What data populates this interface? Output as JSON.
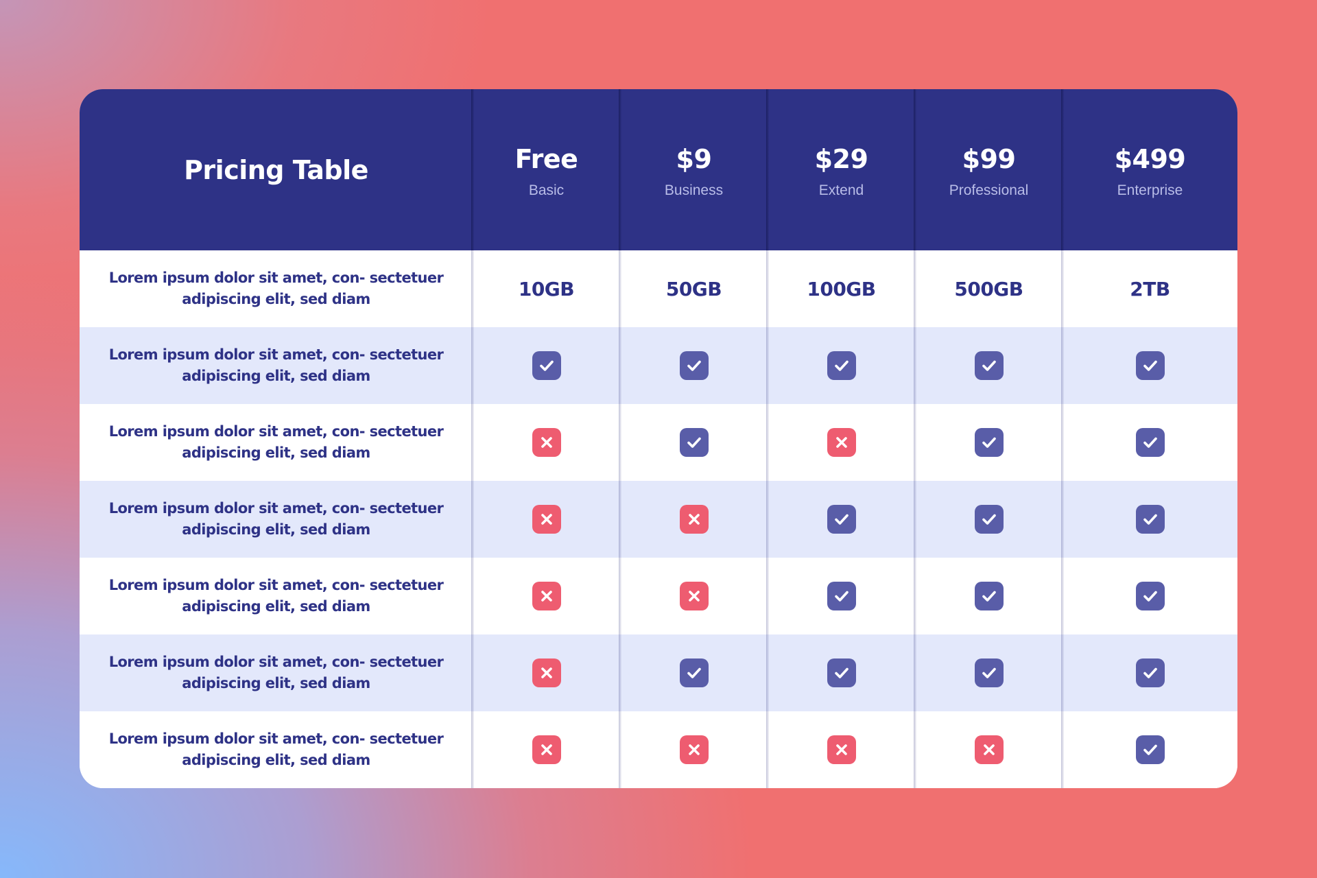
{
  "table": {
    "title": "Pricing Table",
    "plans": [
      {
        "price": "Free",
        "name": "Basic"
      },
      {
        "price": "$9",
        "name": "Business"
      },
      {
        "price": "$29",
        "name": "Extend"
      },
      {
        "price": "$99",
        "name": "Professional"
      },
      {
        "price": "$499",
        "name": "Enterprise"
      }
    ],
    "storage_row": {
      "feature": "Lorem ipsum dolor sit amet, con- sectetuer adipiscing elit, sed diam",
      "values": [
        "10GB",
        "50GB",
        "100GB",
        "500GB",
        "2TB"
      ]
    },
    "feature_rows": [
      {
        "feature": "Lorem ipsum dolor sit amet, con- sectetuer adipiscing elit, sed diam",
        "included": [
          true,
          true,
          true,
          true,
          true
        ]
      },
      {
        "feature": "Lorem ipsum dolor sit amet, con- sectetuer adipiscing elit, sed diam",
        "included": [
          false,
          true,
          false,
          true,
          true
        ]
      },
      {
        "feature": "Lorem ipsum dolor sit amet, con- sectetuer adipiscing elit, sed diam",
        "included": [
          false,
          false,
          true,
          true,
          true
        ]
      },
      {
        "feature": "Lorem ipsum dolor sit amet, con- sectetuer adipiscing elit, sed diam",
        "included": [
          false,
          false,
          true,
          true,
          true
        ]
      },
      {
        "feature": "Lorem ipsum dolor sit amet, con- sectetuer adipiscing elit, sed diam",
        "included": [
          false,
          true,
          true,
          true,
          true
        ]
      },
      {
        "feature": "Lorem ipsum dolor sit amet, con- sectetuer adipiscing elit, sed diam",
        "included": [
          false,
          false,
          false,
          false,
          true
        ]
      }
    ],
    "icons": {
      "included": "check-icon",
      "excluded": "cross-icon"
    },
    "colors": {
      "header": "#2e3286",
      "text": "#2e3286",
      "alt_row": "#e3e8fb",
      "check": "#595da8",
      "cross": "#ee5c70"
    }
  }
}
